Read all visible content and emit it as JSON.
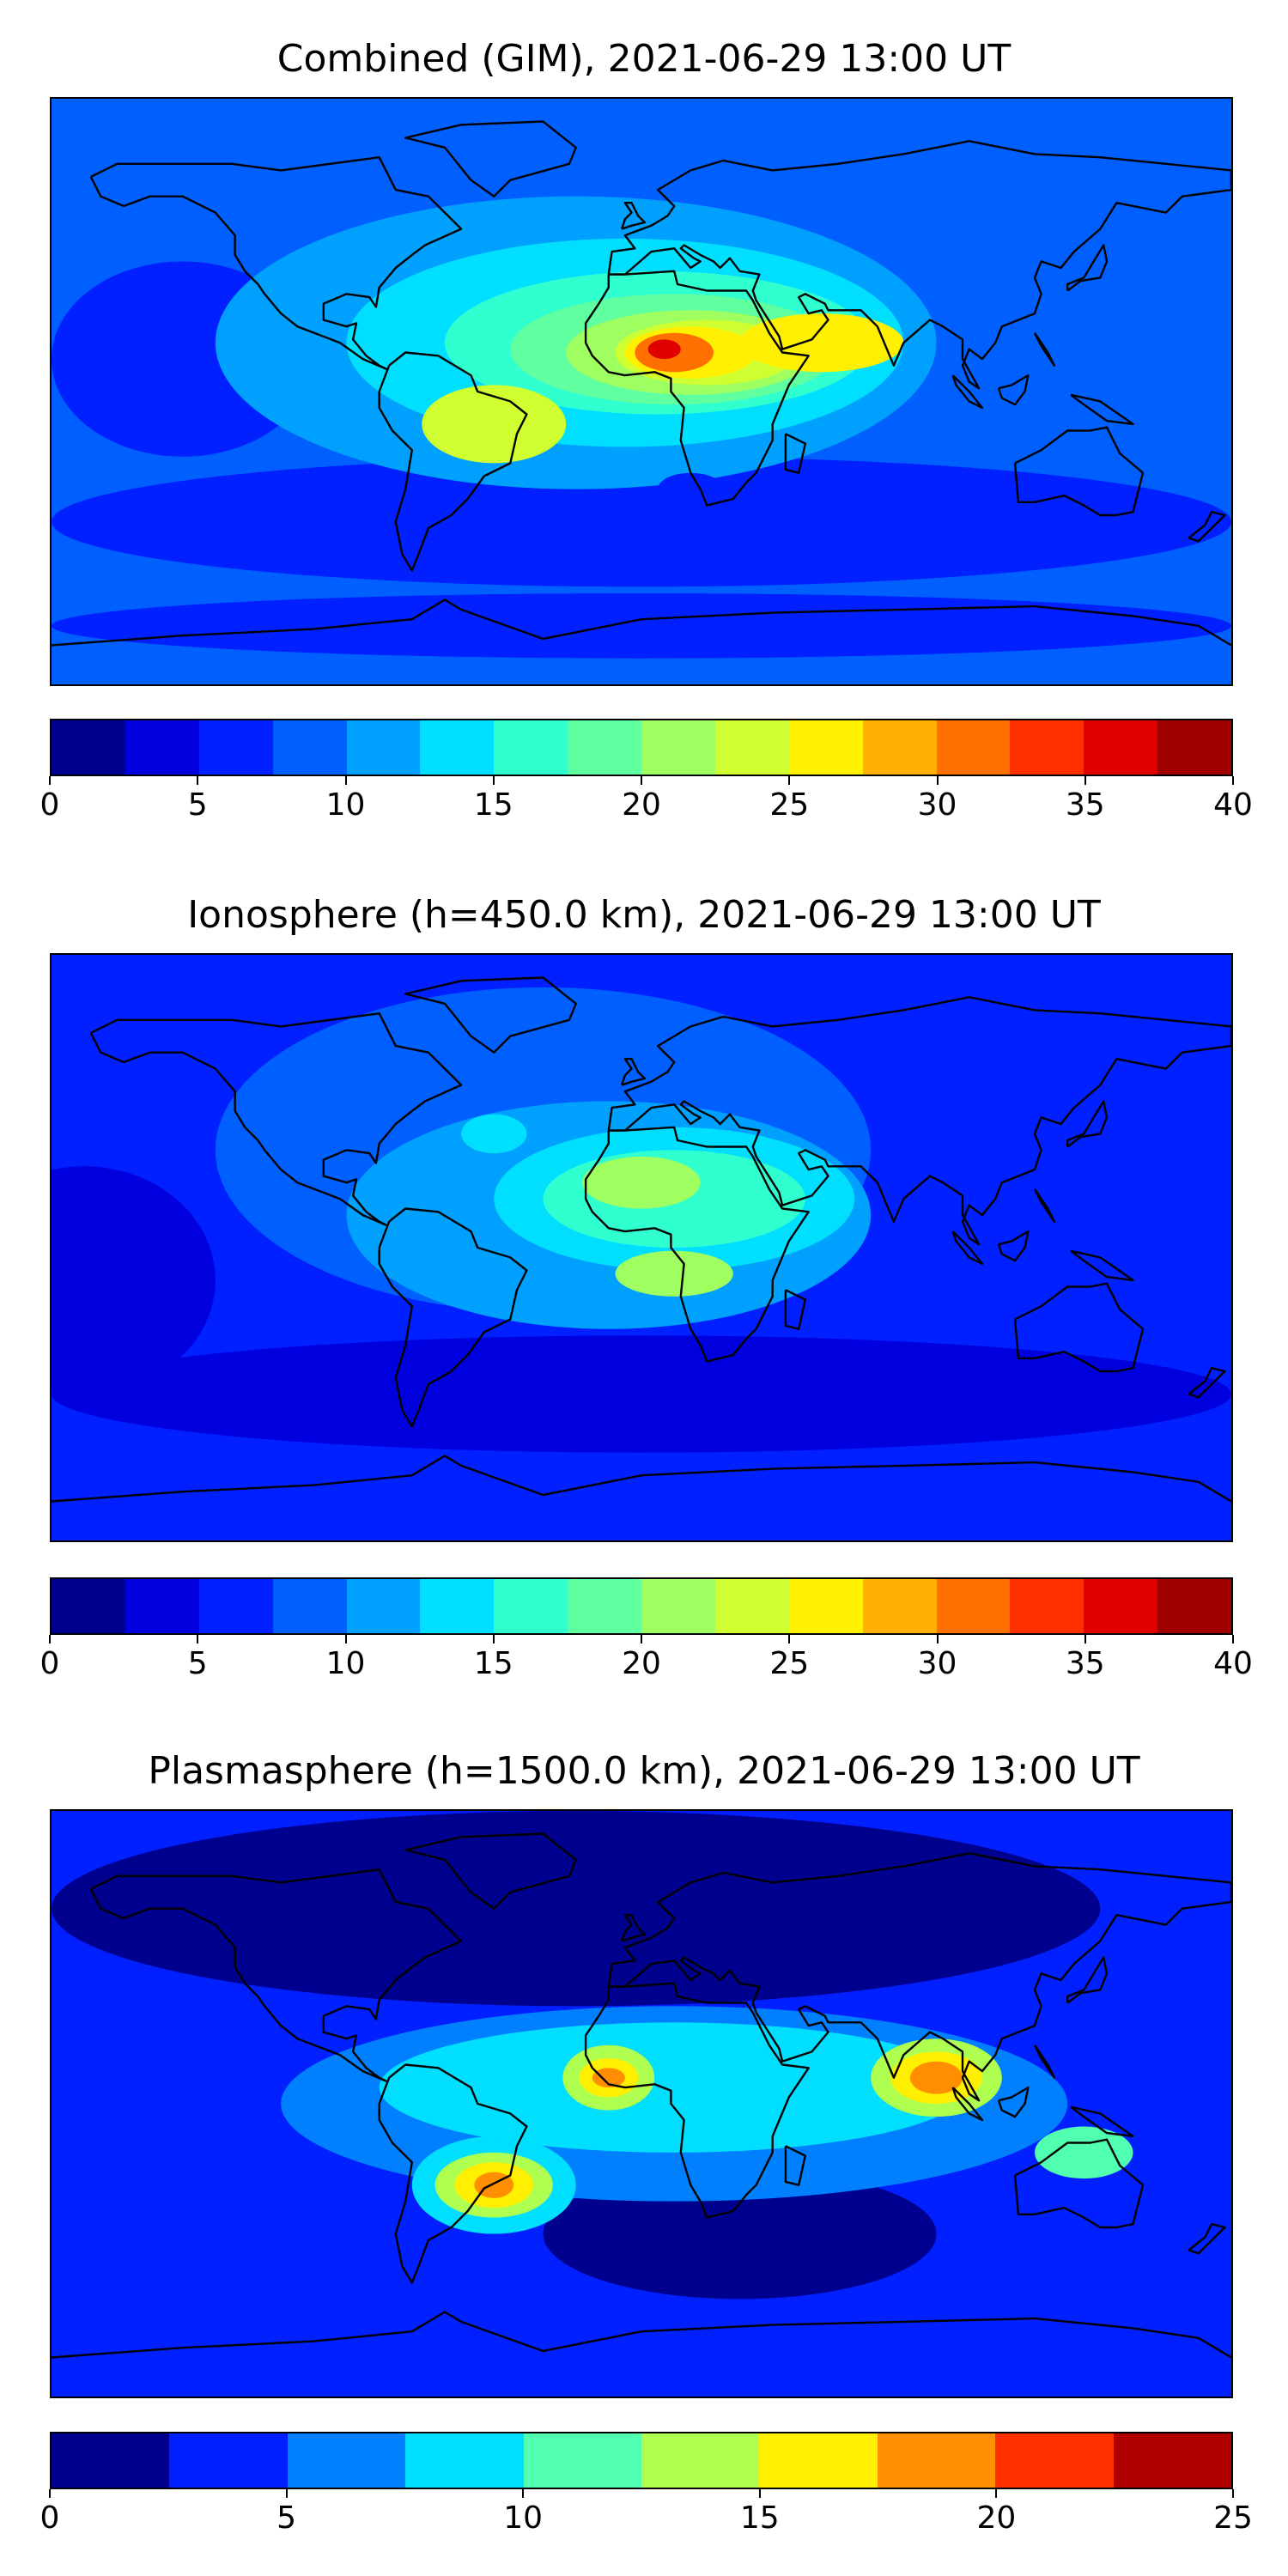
{
  "panels": [
    {
      "title": "Combined (GIM), 2021-06-29 13:00 UT",
      "colorbar": {
        "ticks": [
          "0",
          "5",
          "10",
          "15",
          "20",
          "25",
          "30",
          "35",
          "40"
        ],
        "colors": [
          "#00008f",
          "#0000df",
          "#0020ff",
          "#0060ff",
          "#00a0ff",
          "#00dfff",
          "#30ffcf",
          "#60ff9f",
          "#9fff60",
          "#cfff30",
          "#ffef00",
          "#ffaf00",
          "#ff7000",
          "#ff3000",
          "#e00000",
          "#9f0000"
        ]
      },
      "map": {
        "background": "#0060ff",
        "blobs": [
          {
            "lon": 0,
            "lat": -40,
            "rx": 180,
            "ry": 20,
            "color": "#0020ff"
          },
          {
            "lon": 0,
            "lat": -72,
            "rx": 180,
            "ry": 10,
            "color": "#0020ff"
          },
          {
            "lon": -140,
            "lat": 10,
            "rx": 40,
            "ry": 30,
            "color": "#0020ff"
          },
          {
            "lon": -20,
            "lat": 15,
            "rx": 110,
            "ry": 45,
            "color": "#00a0ff"
          },
          {
            "lon": -5,
            "lat": 15,
            "rx": 85,
            "ry": 32,
            "color": "#00dfff"
          },
          {
            "lon": 5,
            "lat": 15,
            "rx": 65,
            "ry": 22,
            "color": "#30ffcf"
          },
          {
            "lon": 10,
            "lat": 13,
            "rx": 50,
            "ry": 17,
            "color": "#60ff9f"
          },
          {
            "lon": 15,
            "lat": 12,
            "rx": 38,
            "ry": 13,
            "color": "#9fff60"
          },
          {
            "lon": 20,
            "lat": 12,
            "rx": 28,
            "ry": 10,
            "color": "#cfff30"
          },
          {
            "lon": -45,
            "lat": -10,
            "rx": 22,
            "ry": 12,
            "color": "#cfff30"
          },
          {
            "lon": 55,
            "lat": 15,
            "rx": 25,
            "ry": 9,
            "color": "#ffef00"
          },
          {
            "lon": 15,
            "lat": 12,
            "rx": 20,
            "ry": 8,
            "color": "#ffef00"
          },
          {
            "lon": 10,
            "lat": 12,
            "rx": 12,
            "ry": 6,
            "color": "#ff7000"
          },
          {
            "lon": 7,
            "lat": 13,
            "rx": 5,
            "ry": 3,
            "color": "#e00000"
          },
          {
            "lon": 15,
            "lat": -30,
            "rx": 10,
            "ry": 5,
            "color": "#0020ff"
          }
        ]
      }
    },
    {
      "title": "Ionosphere  (h=450.0 km), 2021-06-29 13:00 UT",
      "colorbar": {
        "ticks": [
          "0",
          "5",
          "10",
          "15",
          "20",
          "25",
          "30",
          "35",
          "40"
        ],
        "colors": [
          "#00008f",
          "#0000df",
          "#0020ff",
          "#0060ff",
          "#00a0ff",
          "#00dfff",
          "#30ffcf",
          "#60ff9f",
          "#9fff60",
          "#cfff30",
          "#ffef00",
          "#ffaf00",
          "#ff7000",
          "#ff3000",
          "#e00000",
          "#9f0000"
        ]
      },
      "map": {
        "background": "#0020ff",
        "blobs": [
          {
            "lon": -170,
            "lat": -10,
            "rx": 40,
            "ry": 35,
            "color": "#0000df"
          },
          {
            "lon": 0,
            "lat": -45,
            "rx": 180,
            "ry": 18,
            "color": "#0000df"
          },
          {
            "lon": -30,
            "lat": 30,
            "rx": 100,
            "ry": 50,
            "color": "#0060ff"
          },
          {
            "lon": -10,
            "lat": 10,
            "rx": 80,
            "ry": 35,
            "color": "#00a0ff"
          },
          {
            "lon": 10,
            "lat": 15,
            "rx": 55,
            "ry": 22,
            "color": "#00dfff"
          },
          {
            "lon": 10,
            "lat": 15,
            "rx": 40,
            "ry": 15,
            "color": "#30ffcf"
          },
          {
            "lon": 0,
            "lat": 20,
            "rx": 18,
            "ry": 8,
            "color": "#9fff60"
          },
          {
            "lon": -45,
            "lat": 35,
            "rx": 10,
            "ry": 6,
            "color": "#00dfff"
          },
          {
            "lon": 10,
            "lat": -8,
            "rx": 18,
            "ry": 7,
            "color": "#9fff60"
          }
        ]
      }
    },
    {
      "title": "Plasmasphere (h=1500.0 km), 2021-06-29 13:00 UT",
      "colorbar": {
        "ticks": [
          "0",
          "5",
          "10",
          "15",
          "20",
          "25"
        ],
        "colors": [
          "#00008f",
          "#0020ff",
          "#0080ff",
          "#00dfff",
          "#50ffaf",
          "#afff50",
          "#ffef00",
          "#ff8f00",
          "#ff3000",
          "#af0000"
        ]
      },
      "map": {
        "background": "#0020ff",
        "blobs": [
          {
            "lon": -20,
            "lat": 60,
            "rx": 160,
            "ry": 30,
            "color": "#00008f"
          },
          {
            "lon": 30,
            "lat": -40,
            "rx": 60,
            "ry": 20,
            "color": "#00008f"
          },
          {
            "lon": 10,
            "lat": 0,
            "rx": 120,
            "ry": 30,
            "color": "#0080ff"
          },
          {
            "lon": 10,
            "lat": 5,
            "rx": 90,
            "ry": 20,
            "color": "#00dfff"
          },
          {
            "lon": -45,
            "lat": -25,
            "rx": 25,
            "ry": 15,
            "color": "#00dfff"
          },
          {
            "lon": -45,
            "lat": -25,
            "rx": 18,
            "ry": 10,
            "color": "#afff50"
          },
          {
            "lon": -45,
            "lat": -25,
            "rx": 12,
            "ry": 7,
            "color": "#ffef00"
          },
          {
            "lon": -45,
            "lat": -25,
            "rx": 6,
            "ry": 4,
            "color": "#ff8f00"
          },
          {
            "lon": -10,
            "lat": 8,
            "rx": 14,
            "ry": 10,
            "color": "#afff50"
          },
          {
            "lon": -10,
            "lat": 8,
            "rx": 9,
            "ry": 6,
            "color": "#ffef00"
          },
          {
            "lon": -10,
            "lat": 8,
            "rx": 5,
            "ry": 3,
            "color": "#ff8f00"
          },
          {
            "lon": 90,
            "lat": 8,
            "rx": 20,
            "ry": 12,
            "color": "#afff50"
          },
          {
            "lon": 90,
            "lat": 8,
            "rx": 14,
            "ry": 8,
            "color": "#ffef00"
          },
          {
            "lon": 90,
            "lat": 8,
            "rx": 8,
            "ry": 5,
            "color": "#ff8f00"
          },
          {
            "lon": 135,
            "lat": -15,
            "rx": 15,
            "ry": 8,
            "color": "#50ffaf"
          }
        ]
      }
    }
  ]
}
